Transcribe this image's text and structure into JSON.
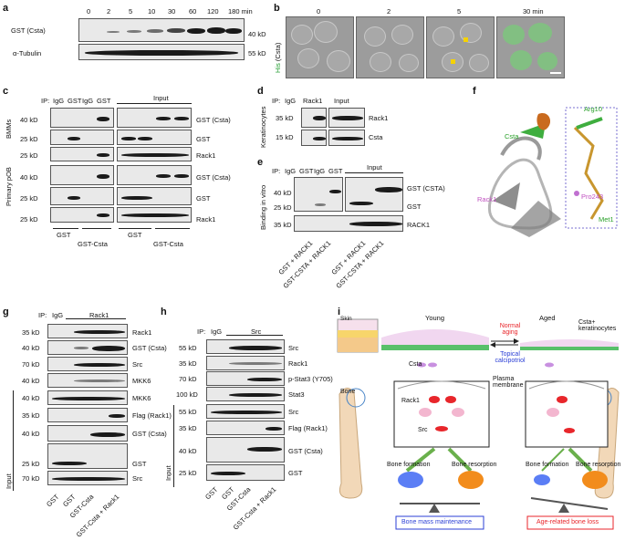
{
  "panels": {
    "a": {
      "letter": "a",
      "times": [
        "0",
        "2",
        "5",
        "10",
        "30",
        "60",
        "120",
        "180 min"
      ],
      "rows": [
        "GST (Csta)",
        "α-Tubulin"
      ],
      "mw": [
        "40 kD",
        "55 kD"
      ]
    },
    "b": {
      "letter": "b",
      "times": [
        "0",
        "2",
        "5",
        "30 min"
      ],
      "ylabel_green": "His",
      "ylabel_rest": "(Csta)"
    },
    "c": {
      "letter": "c",
      "ip": "IP:",
      "lanes": [
        "IgG",
        "GST",
        "IgG",
        "GST"
      ],
      "input": "Input",
      "group1": "BMMs",
      "group2": "Primary pOB",
      "mw": [
        "40 kD",
        "25 kD",
        "25 kD",
        "40 kD",
        "25 kD",
        "25 kD"
      ],
      "rows": [
        "GST (Csta)",
        "GST",
        "Rack1",
        "GST (Csta)",
        "GST",
        "Rack1"
      ],
      "bottom": [
        "GST",
        "GST-Csta",
        "GST",
        "GST-Csta"
      ]
    },
    "d": {
      "letter": "d",
      "side": "Keratinocytes",
      "ip": "IP:",
      "lanes": [
        "IgG",
        "Rack1"
      ],
      "input": "Input",
      "mw": [
        "35 kD",
        "15 kD"
      ],
      "rows": [
        "Rack1",
        "Csta"
      ]
    },
    "e": {
      "letter": "e",
      "side": "Binding in vitro",
      "ip": "IP:",
      "lanes": [
        "IgG",
        "GST",
        "IgG",
        "GST"
      ],
      "input": "Input",
      "mw": [
        "40 kD",
        "25 kD",
        "35 kD"
      ],
      "rows": [
        "GST (CSTA)",
        "GST",
        "RACK1"
      ],
      "bottom": [
        "GST + RACK1",
        "GST-CSTA + RACK1",
        "GST + RACK1",
        "GST-CSTA + RACK1"
      ]
    },
    "f": {
      "letter": "f",
      "csta": "Csta",
      "rack1": "Rack1",
      "arg": "Arg10",
      "pro": "Pro243",
      "met": "Met1"
    },
    "g": {
      "letter": "g",
      "ip": "IP:",
      "lanes": [
        "IgG",
        "Rack1"
      ],
      "input": "Input",
      "mw": [
        "35 kD",
        "40 kD",
        "70 kD",
        "40 kD",
        "40 kD",
        "35 kD",
        "40 kD",
        "25 kD",
        "70 kD"
      ],
      "rows": [
        "Rack1",
        "GST (Csta)",
        "Src",
        "MKK6",
        "MKK6",
        "Flag (Rack1)",
        "GST (Csta)",
        "GST",
        "Src"
      ],
      "bottom": [
        "GST",
        "GST",
        "GST-Csta",
        "GST-Csta + Rack1"
      ]
    },
    "h": {
      "letter": "h",
      "ip": "IP:",
      "lanes": [
        "IgG",
        "Src"
      ],
      "input": "Input",
      "mw": [
        "55 kD",
        "35 kD",
        "70 kD",
        "100 kD",
        "55 kD",
        "35 kD",
        "40 kD",
        "25 kD"
      ],
      "rows": [
        "Src",
        "Rack1",
        "p-Stat3 (Y705)",
        "Stat3",
        "Src",
        "Flag (Rack1)",
        "GST (Csta)",
        "GST"
      ],
      "bottom": [
        "GST",
        "GST",
        "GST-Csta",
        "GST-Csta + Rack1"
      ]
    },
    "i": {
      "letter": "i",
      "skin": "Skin",
      "young": "Young",
      "aged": "Aged",
      "normal": "Normal aging",
      "topical": "Topical calcipotriol",
      "csta_ker": "Csta+ keratinocytes",
      "csta": "Csta",
      "plasma": "Plasma membrane",
      "bone": "Bone",
      "rack1": "Rack1",
      "src": "Src",
      "formation": "Bone formation",
      "resorption": "Bone resorption",
      "maint": "Bone mass maintenance",
      "loss": "Age-related bone loss",
      "colors": {
        "red": "#e8262b",
        "blue": "#2b3fd6",
        "green": "#6ab04c",
        "orange": "#f28c1c"
      }
    }
  }
}
